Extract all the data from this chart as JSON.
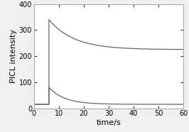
{
  "title": "",
  "xlabel": "time/s",
  "ylabel": "PICL intensity",
  "xlim": [
    0,
    60
  ],
  "ylim": [
    0,
    400
  ],
  "xticks": [
    0,
    10,
    20,
    30,
    40,
    50,
    60
  ],
  "yticks": [
    0,
    100,
    200,
    300,
    400
  ],
  "background_color": "#f0f0f0",
  "plot_bg_color": "#ffffff",
  "line_color": "#666666",
  "border_color": "#aaaaaa",
  "curve1": {
    "baseline": 15,
    "peak": 340,
    "decay_rate": 0.1,
    "asymptote": 225
  },
  "curve2": {
    "baseline": 15,
    "peak": 80,
    "decay_rate": 0.16,
    "asymptote": 15
  },
  "flat_start": 6.0,
  "linewidth": 0.9,
  "xlabel_fontsize": 8,
  "ylabel_fontsize": 8,
  "tick_fontsize": 7
}
